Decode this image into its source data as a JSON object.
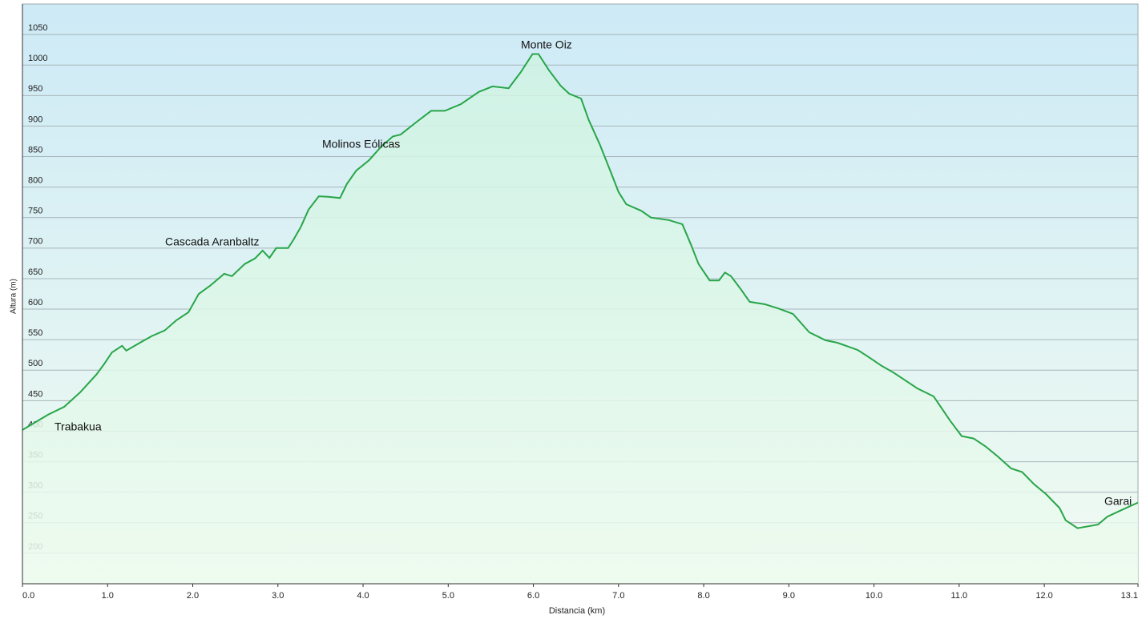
{
  "chart_data": {
    "type": "area",
    "xlabel": "Distancia  (km)",
    "ylabel": "Altura (m)",
    "x": [
      0,
      0.3,
      0.49,
      0.68,
      0.87,
      0.96,
      1.05,
      1.17,
      1.22,
      1.38,
      1.52,
      1.67,
      1.81,
      1.95,
      2.07,
      2.2,
      2.37,
      2.46,
      2.61,
      2.73,
      2.82,
      2.9,
      2.98,
      3.12,
      3.18,
      3.27,
      3.36,
      3.48,
      3.59,
      3.73,
      3.81,
      3.92,
      4.07,
      4.21,
      4.35,
      4.44,
      4.63,
      4.8,
      4.96,
      5.15,
      5.36,
      5.52,
      5.71,
      5.85,
      5.99,
      6.06,
      6.18,
      6.32,
      6.42,
      6.56,
      6.65,
      6.78,
      6.91,
      7.0,
      7.09,
      7.27,
      7.38,
      7.59,
      7.75,
      7.85,
      7.94,
      8.07,
      8.18,
      8.25,
      8.32,
      8.44,
      8.54,
      8.72,
      8.88,
      9.05,
      9.24,
      9.43,
      9.57,
      9.81,
      9.92,
      10.09,
      10.23,
      10.37,
      10.51,
      10.7,
      10.89,
      11.03,
      11.17,
      11.31,
      11.45,
      11.61,
      11.74,
      11.88,
      12.02,
      12.18,
      12.25,
      12.39,
      12.63,
      12.74,
      12.91,
      13.1
    ],
    "series": [
      {
        "color": "#27a548",
        "values": [
          402,
          427,
          440,
          464,
          493,
          510,
          529,
          540,
          532,
          545,
          556,
          565,
          582,
          595,
          625,
          638,
          658,
          654,
          674,
          683,
          696,
          684,
          700,
          700,
          713,
          735,
          763,
          785,
          784,
          782,
          805,
          827,
          844,
          866,
          883,
          886,
          907,
          925,
          925,
          936,
          956,
          965,
          962,
          988,
          1018,
          1018,
          992,
          966,
          953,
          945,
          910,
          870,
          824,
          792,
          772,
          761,
          750,
          746,
          739,
          706,
          674,
          647,
          647,
          660,
          654,
          632,
          612,
          608,
          601,
          592,
          562,
          549,
          545,
          533,
          523,
          507,
          496,
          483,
          470,
          457,
          418,
          392,
          388,
          375,
          359,
          339,
          333,
          313,
          297,
          274,
          254,
          241,
          247,
          260,
          271,
          283
        ]
      }
    ],
    "annotations": [
      "Trabakua",
      "Cascada Aranbaltz",
      "Molinos Eólicas",
      "Monte Oiz",
      "Garai"
    ],
    "xlim": [
      0,
      13.1
    ],
    "xticks": [
      {
        "value": 0,
        "label": "0.0"
      },
      {
        "value": 1,
        "label": "1.0"
      },
      {
        "value": 2,
        "label": "2.0"
      },
      {
        "value": 3,
        "label": "3.0"
      },
      {
        "value": 4,
        "label": "4.0"
      },
      {
        "value": 5,
        "label": "5.0"
      },
      {
        "value": 6,
        "label": "6.0"
      },
      {
        "value": 7,
        "label": "7.0"
      },
      {
        "value": 8,
        "label": "8.0"
      },
      {
        "value": 9,
        "label": "9.0"
      },
      {
        "value": 10,
        "label": "10.0"
      },
      {
        "value": 11,
        "label": "11.0"
      },
      {
        "value": 12,
        "label": "12.0"
      },
      13.1
    ],
    "ylim": [
      150,
      1100
    ],
    "yticks": [
      200,
      250,
      300,
      350,
      400,
      450,
      500,
      550,
      600,
      650,
      700,
      750,
      800,
      850,
      900,
      950,
      1000,
      1050
    ],
    "grid": true
  }
}
